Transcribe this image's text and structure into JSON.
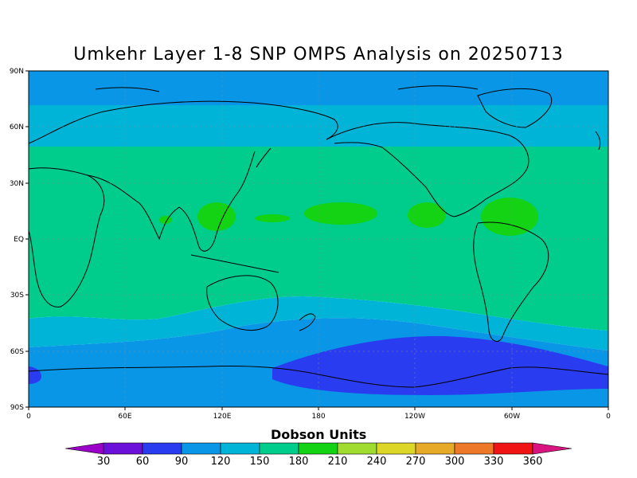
{
  "title": "Umkehr Layer 1-8 SNP OMPS Analysis on 20250713",
  "colorbar": {
    "title": "Dobson Units",
    "labels": [
      "30",
      "60",
      "90",
      "120",
      "150",
      "180",
      "210",
      "240",
      "270",
      "300",
      "330",
      "360"
    ],
    "colors": [
      "#9a00c8",
      "#6a10d8",
      "#2a3cf0",
      "#0a96e6",
      "#00b4d8",
      "#00cc8c",
      "#14d214",
      "#a0dc30",
      "#dcd628",
      "#e6aa28",
      "#ec7828",
      "#f01414",
      "#d81480"
    ]
  },
  "axes": {
    "lat_labels": [
      "90N",
      "60N",
      "30N",
      "EQ",
      "30S",
      "60S",
      "90S"
    ],
    "lon_labels": [
      "0",
      "60E",
      "120E",
      "180",
      "120W",
      "60W",
      "0"
    ]
  },
  "field_colors": {
    "band_90_120": "#0a96e6",
    "band_120_150": "#00b4d8",
    "band_150_180": "#00cc8c",
    "band_180_210": "#14d214",
    "band_60_90": "#2a3cf0"
  }
}
